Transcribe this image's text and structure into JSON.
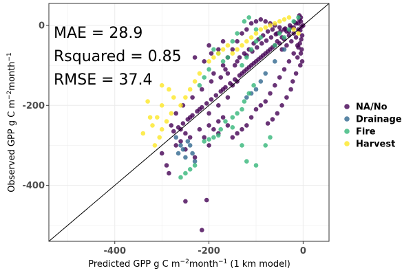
{
  "chart_data": {
    "type": "scatter",
    "xlabel": {
      "main": "Predicted GPP g C m",
      "sup": "−2",
      "mid": "month",
      "sup2": "−1",
      "tail": " (1 km model)"
    },
    "ylabel": {
      "main": "Observed GPP g C m",
      "sup": "−2",
      "mid": "month",
      "sup2": "−1"
    },
    "xlim": [
      -540,
      55
    ],
    "ylim": [
      -540,
      55
    ],
    "x_ticks": [
      -400,
      -200,
      0
    ],
    "y_ticks": [
      -400,
      -200,
      0
    ],
    "grid": true,
    "identity_line": true,
    "legend_position": "right",
    "stats": [
      "MAE = 28.9",
      "Rsquared = 0.85",
      "RMSE = 37.4"
    ],
    "series": [
      {
        "name": "NA/No",
        "color": "#440154",
        "points": [
          [
            -250,
            -440
          ],
          [
            -205,
            -437
          ],
          [
            -215,
            -512
          ],
          [
            -285,
            -370
          ],
          [
            -290,
            -350
          ],
          [
            -300,
            -320
          ],
          [
            -270,
            -300
          ],
          [
            -250,
            -310
          ],
          [
            -230,
            -330
          ],
          [
            -200,
            -300
          ],
          [
            -180,
            -270
          ],
          [
            -260,
            -260
          ],
          [
            -240,
            -230
          ],
          [
            -220,
            -210
          ],
          [
            -200,
            -220
          ],
          [
            -180,
            -200
          ],
          [
            -160,
            -180
          ],
          [
            -150,
            -150
          ],
          [
            -170,
            -160
          ],
          [
            -140,
            -140
          ],
          [
            -130,
            -120
          ],
          [
            -120,
            -110
          ],
          [
            -110,
            -100
          ],
          [
            -100,
            -90
          ],
          [
            -90,
            -80
          ],
          [
            -80,
            -70
          ],
          [
            -70,
            -60
          ],
          [
            -60,
            -50
          ],
          [
            -50,
            -45
          ],
          [
            -40,
            -35
          ],
          [
            -30,
            -25
          ],
          [
            -20,
            -20
          ],
          [
            -10,
            -10
          ],
          [
            0,
            0
          ],
          [
            -5,
            10
          ],
          [
            -15,
            5
          ],
          [
            -25,
            -5
          ],
          [
            -35,
            -15
          ],
          [
            -45,
            -30
          ],
          [
            -55,
            -40
          ],
          [
            -65,
            -55
          ],
          [
            -75,
            -65
          ],
          [
            -85,
            -75
          ],
          [
            -95,
            -85
          ],
          [
            -105,
            -95
          ],
          [
            -115,
            -105
          ],
          [
            -125,
            -115
          ],
          [
            -135,
            -125
          ],
          [
            -145,
            -135
          ],
          [
            -155,
            -145
          ],
          [
            -165,
            -155
          ],
          [
            -175,
            -165
          ],
          [
            -185,
            -175
          ],
          [
            -195,
            -185
          ],
          [
            -205,
            -195
          ],
          [
            -215,
            -205
          ],
          [
            -225,
            -215
          ],
          [
            -235,
            -225
          ],
          [
            -245,
            -235
          ],
          [
            -255,
            -245
          ],
          [
            -265,
            -255
          ],
          [
            -275,
            -265
          ],
          [
            -190,
            -120
          ],
          [
            -170,
            -100
          ],
          [
            -160,
            -80
          ],
          [
            -150,
            -60
          ],
          [
            -140,
            -40
          ],
          [
            -130,
            -20
          ],
          [
            -120,
            -10
          ],
          [
            -110,
            5
          ],
          [
            -100,
            10
          ],
          [
            -90,
            15
          ],
          [
            -80,
            10
          ],
          [
            -70,
            5
          ],
          [
            -60,
            0
          ],
          [
            -50,
            -5
          ],
          [
            -40,
            -10
          ],
          [
            -30,
            -15
          ],
          [
            -20,
            -5
          ],
          [
            -10,
            5
          ],
          [
            -5,
            20
          ],
          [
            -8,
            25
          ],
          [
            -200,
            -50
          ],
          [
            -180,
            -60
          ],
          [
            -170,
            -40
          ],
          [
            -230,
            -80
          ],
          [
            -210,
            -90
          ],
          [
            -195,
            -70
          ],
          [
            -160,
            -120
          ],
          [
            -140,
            -90
          ],
          [
            -125,
            -70
          ],
          [
            -115,
            -60
          ],
          [
            -105,
            -45
          ],
          [
            -95,
            -35
          ],
          [
            -85,
            -25
          ],
          [
            -75,
            -15
          ],
          [
            -65,
            -10
          ],
          [
            -55,
            -20
          ],
          [
            -45,
            -60
          ],
          [
            -35,
            -50
          ],
          [
            -25,
            -40
          ],
          [
            -15,
            -30
          ],
          [
            -12,
            -50
          ],
          [
            -20,
            -70
          ],
          [
            -30,
            -90
          ],
          [
            -40,
            -110
          ],
          [
            -50,
            -130
          ],
          [
            -60,
            -150
          ],
          [
            -70,
            -170
          ],
          [
            -80,
            -190
          ],
          [
            -90,
            -200
          ],
          [
            -100,
            -210
          ],
          [
            -110,
            -230
          ],
          [
            -120,
            -250
          ],
          [
            -130,
            -260
          ],
          [
            -140,
            -270
          ],
          [
            -150,
            -280
          ],
          [
            -160,
            -250
          ],
          [
            -170,
            -230
          ],
          [
            -180,
            -240
          ],
          [
            -190,
            -260
          ],
          [
            -200,
            -250
          ],
          [
            -210,
            -280
          ],
          [
            -220,
            -260
          ],
          [
            -240,
            -280
          ],
          [
            -250,
            -270
          ],
          [
            -260,
            -290
          ],
          [
            -280,
            -250
          ],
          [
            -270,
            -220
          ],
          [
            -255,
            -200
          ],
          [
            -235,
            -180
          ],
          [
            -215,
            -160
          ],
          [
            -195,
            -140
          ],
          [
            -175,
            -130
          ],
          [
            -165,
            -110
          ],
          [
            -145,
            -100
          ],
          [
            -135,
            -80
          ],
          [
            -120,
            -75
          ],
          [
            -108,
            -65
          ],
          [
            -98,
            -55
          ],
          [
            -88,
            -45
          ],
          [
            -78,
            -38
          ],
          [
            -68,
            -30
          ],
          [
            -58,
            -22
          ],
          [
            -48,
            -15
          ],
          [
            -38,
            -8
          ],
          [
            -28,
            0
          ],
          [
            -18,
            8
          ],
          [
            -8,
            15
          ],
          [
            -3,
            -3
          ],
          [
            -6,
            -12
          ],
          [
            -2,
            -25
          ],
          [
            -4,
            -35
          ],
          [
            -7,
            -45
          ],
          [
            -10,
            -55
          ],
          [
            -3,
            -60
          ],
          [
            -5,
            -70
          ],
          [
            -12,
            -80
          ],
          [
            -2,
            -90
          ],
          [
            -6,
            -100
          ],
          [
            -15,
            -120
          ],
          [
            -22,
            -140
          ],
          [
            -26,
            -160
          ],
          [
            -35,
            -180
          ],
          [
            -45,
            -200
          ],
          [
            -55,
            -220
          ],
          [
            -65,
            -235
          ],
          [
            -75,
            -245
          ]
        ]
      },
      {
        "name": "Drainage",
        "color": "#31688e",
        "points": [
          [
            -270,
            -280
          ],
          [
            -260,
            -300
          ],
          [
            -255,
            -310
          ],
          [
            -245,
            -290
          ],
          [
            -240,
            -300
          ],
          [
            -235,
            -320
          ],
          [
            -265,
            -320
          ],
          [
            -250,
            -330
          ],
          [
            -230,
            -340
          ],
          [
            -120,
            -180
          ],
          [
            -110,
            -170
          ],
          [
            -100,
            -160
          ],
          [
            -90,
            -140
          ],
          [
            -80,
            -120
          ],
          [
            -60,
            -90
          ],
          [
            -40,
            -60
          ]
        ]
      },
      {
        "name": "Fire",
        "color": "#35b779",
        "points": [
          [
            -250,
            -370
          ],
          [
            -260,
            -380
          ],
          [
            -240,
            -360
          ],
          [
            -230,
            -350
          ],
          [
            -210,
            -290
          ],
          [
            -200,
            -285
          ],
          [
            -190,
            -280
          ],
          [
            -180,
            -275
          ],
          [
            -175,
            -260
          ],
          [
            -165,
            -240
          ],
          [
            -150,
            -230
          ],
          [
            -140,
            -220
          ],
          [
            -130,
            -210
          ],
          [
            -125,
            -190
          ],
          [
            -115,
            -170
          ],
          [
            -105,
            -150
          ],
          [
            -150,
            -255
          ],
          [
            -130,
            -300
          ],
          [
            -120,
            -340
          ],
          [
            -100,
            -350
          ],
          [
            -80,
            -300
          ],
          [
            -70,
            -280
          ],
          [
            -130,
            -100
          ],
          [
            -120,
            -80
          ],
          [
            -110,
            -60
          ],
          [
            -100,
            -40
          ],
          [
            -90,
            -30
          ],
          [
            -150,
            -40
          ],
          [
            -140,
            -20
          ],
          [
            -125,
            10
          ],
          [
            -115,
            20
          ],
          [
            -100,
            -10
          ],
          [
            -160,
            -80
          ],
          [
            -170,
            -90
          ],
          [
            -180,
            -70
          ],
          [
            -190,
            -60
          ],
          [
            -200,
            -110
          ],
          [
            -210,
            -130
          ],
          [
            -220,
            -150
          ],
          [
            -60,
            -50
          ],
          [
            -50,
            -20
          ],
          [
            -40,
            -30
          ],
          [
            -30,
            -10
          ],
          [
            -20,
            10
          ],
          [
            -10,
            20
          ]
        ]
      },
      {
        "name": "Harvest",
        "color": "#fde725",
        "points": [
          [
            -300,
            -200
          ],
          [
            -310,
            -230
          ],
          [
            -320,
            -250
          ],
          [
            -305,
            -280
          ],
          [
            -315,
            -300
          ],
          [
            -300,
            -260
          ],
          [
            -290,
            -240
          ],
          [
            -280,
            -220
          ],
          [
            -275,
            -180
          ],
          [
            -285,
            -160
          ],
          [
            -300,
            -150
          ],
          [
            -330,
            -190
          ],
          [
            -325,
            -230
          ],
          [
            -340,
            -270
          ],
          [
            -260,
            -200
          ],
          [
            -250,
            -180
          ],
          [
            -240,
            -160
          ],
          [
            -230,
            -140
          ],
          [
            -220,
            -120
          ],
          [
            -200,
            -90
          ],
          [
            -190,
            -80
          ],
          [
            -180,
            -70
          ],
          [
            -170,
            -60
          ],
          [
            -160,
            -50
          ],
          [
            -150,
            -70
          ],
          [
            -140,
            -60
          ],
          [
            -130,
            -50
          ],
          [
            -120,
            -40
          ],
          [
            -110,
            -30
          ],
          [
            -100,
            -20
          ],
          [
            -90,
            -10
          ],
          [
            -80,
            -5
          ],
          [
            -70,
            0
          ],
          [
            -60,
            5
          ],
          [
            -50,
            10
          ],
          [
            -40,
            15
          ],
          [
            -30,
            20
          ],
          [
            -20,
            -10
          ],
          [
            -10,
            -20
          ]
        ]
      }
    ]
  }
}
